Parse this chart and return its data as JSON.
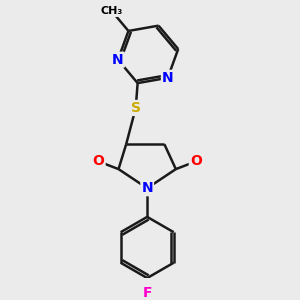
{
  "bg_color": "#ebebeb",
  "bond_color": "#1a1a1a",
  "bond_width": 1.8,
  "atom_colors": {
    "N": "#0000ff",
    "O": "#ff0000",
    "S": "#ccaa00",
    "F": "#ff00cc",
    "C": "#000000"
  },
  "font_size_atoms": 10,
  "font_size_methyl": 9,
  "fig_size": [
    3.0,
    3.0
  ],
  "dpi": 100
}
